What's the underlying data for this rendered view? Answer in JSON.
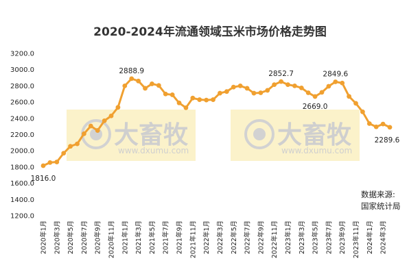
{
  "chart_data": {
    "type": "line",
    "title": "2020-2024年流通领域玉米市场价格走势图",
    "xlabel": "",
    "ylabel": "",
    "ylim": [
      1200,
      3200
    ],
    "yticks": [
      1200,
      1400,
      1600,
      1800,
      2000,
      2200,
      2400,
      2600,
      2800,
      3000,
      3200
    ],
    "ytick_labels": [
      "1200.0",
      "1400.0",
      "1600.0",
      "1800.0",
      "2000.0",
      "2200.0",
      "2400.0",
      "2600.0",
      "2800.0",
      "3000.0",
      "3200.0"
    ],
    "grid": false,
    "color": "#f0a030",
    "categories": [
      "2020年1月",
      "2020年2月",
      "2020年3月",
      "2020年4月",
      "2020年5月",
      "2020年6月",
      "2020年7月",
      "2020年8月",
      "2020年9月",
      "2020年10月",
      "2020年11月",
      "2020年12月",
      "2021年1月",
      "2021年2月",
      "2021年3月",
      "2021年4月",
      "2021年5月",
      "2021年6月",
      "2021年7月",
      "2021年8月",
      "2021年9月",
      "2021年10月",
      "2021年11月",
      "2021年12月",
      "2022年1月",
      "2022年2月",
      "2022年3月",
      "2022年4月",
      "2022年5月",
      "2022年6月",
      "2022年7月",
      "2022年8月",
      "2022年9月",
      "2022年10月",
      "2022年11月",
      "2022年12月",
      "2023年1月",
      "2023年2月",
      "2023年3月",
      "2023年4月",
      "2023年5月",
      "2023年6月",
      "2023年7月",
      "2023年8月",
      "2023年9月",
      "2023年10月",
      "2023年11月",
      "2023年12月",
      "2024年1月",
      "2024年2月",
      "2024年3月",
      "2024年4月"
    ],
    "x_tick_labels": [
      "2020年1月",
      "2020年3月",
      "2020年5月",
      "2020年7月",
      "2020年9月",
      "2020年11月",
      "2021年1月",
      "2021年3月",
      "2021年5月",
      "2021年7月",
      "2021年9月",
      "2021年11月",
      "2022年1月",
      "2022年3月",
      "2022年5月",
      "2022年7月",
      "2022年9月",
      "2022年11月",
      "2023年1月",
      "2023年3月",
      "2023年5月",
      "2023年7月",
      "2023年9月",
      "2023年11月",
      "2024年1月",
      "2024年3月"
    ],
    "values": [
      1816.0,
      1855,
      1862,
      1970,
      2055,
      2085,
      2210,
      2305,
      2250,
      2370,
      2430,
      2535,
      2800,
      2888.9,
      2860,
      2770,
      2825,
      2805,
      2700,
      2690,
      2590,
      2530,
      2650,
      2630,
      2625,
      2630,
      2710,
      2730,
      2785,
      2800,
      2770,
      2710,
      2715,
      2745,
      2815,
      2852.7,
      2815,
      2800,
      2775,
      2715,
      2669.0,
      2720,
      2795,
      2849.6,
      2835,
      2670,
      2585,
      2480,
      2335,
      2295,
      2330,
      2289.6
    ],
    "data_labels": [
      {
        "index": 0,
        "text": "1816.0"
      },
      {
        "index": 13,
        "text": "2888.9"
      },
      {
        "index": 35,
        "text": "2852.7"
      },
      {
        "index": 40,
        "text": "2669.0"
      },
      {
        "index": 43,
        "text": "2849.6"
      },
      {
        "index": 51,
        "text": "2289.6"
      }
    ]
  },
  "source_note": {
    "line1": "数据来源:",
    "line2": "国家统计局"
  },
  "watermark": {
    "brand": "大畜牧",
    "url": "www.dxumu.com"
  }
}
